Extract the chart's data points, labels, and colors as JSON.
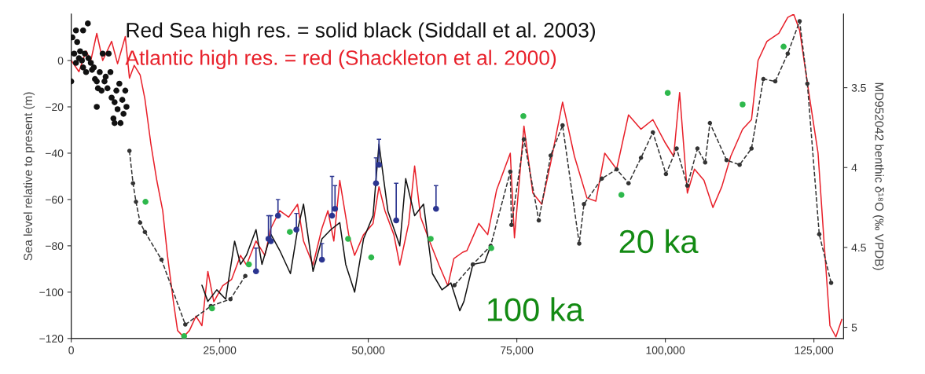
{
  "chart_data": {
    "type": "line",
    "ylabel": "Sea level relative to present (m)",
    "y2label": "MD952042 benthic δ¹⁸O (‰ VPDB)",
    "xlim": [
      0,
      130000
    ],
    "xticks": [
      0,
      {
        "value": 25000,
        "label": "25,000"
      },
      {
        "value": 50000,
        "label": "50,000"
      },
      {
        "value": 75000,
        "label": "75,000"
      },
      {
        "value": 100000,
        "label": "100,000"
      },
      {
        "value": 125000,
        "label": "125,000"
      }
    ],
    "ylim": [
      -120,
      20
    ],
    "yticks": [
      0,
      {
        "value": -20,
        "label": "−20"
      },
      {
        "value": -40,
        "label": "−40"
      },
      {
        "value": -60,
        "label": "−60"
      },
      {
        "value": -80,
        "label": "−80"
      },
      {
        "value": -100,
        "label": "−100"
      },
      {
        "value": -120,
        "label": "−120"
      }
    ],
    "y2lim": [
      5.07,
      3.04
    ],
    "y2ticks": [
      {
        "value": 3.5,
        "label": "3.5"
      },
      4,
      {
        "value": 4.5,
        "label": "4.5"
      },
      5
    ],
    "grid": false,
    "legend": false,
    "annotations": [
      "100 ka",
      "20 ka"
    ],
    "series": [
      {
        "name": "Atlantic high res. = red (Shackleton et al. 2000)",
        "axis": "y2",
        "color": "#e8202a",
        "line_style": "solid",
        "x": [
          0,
          1300,
          2500,
          3300,
          4300,
          5300,
          6800,
          7800,
          9100,
          9800,
          10600,
          11600,
          12400,
          13400,
          14400,
          15400,
          16200,
          17200,
          17900,
          18900,
          19900,
          21000,
          22000,
          23000,
          24000,
          25500,
          27000,
          28500,
          29500,
          31100,
          32600,
          33600,
          35100,
          36600,
          38100,
          39100,
          40700,
          42200,
          43200,
          44200,
          45200,
          46700,
          47700,
          49200,
          50800,
          51800,
          52800,
          54300,
          55300,
          56800,
          57800,
          58800,
          60300,
          61900,
          63400,
          64400,
          65900,
          66600,
          68600,
          70100,
          71600,
          73900,
          74600,
          76200,
          77700,
          79200,
          80700,
          82700,
          84700,
          86800,
          88300,
          89800,
          91800,
          93800,
          95900,
          97900,
          99900,
          101400,
          102400,
          103700,
          104900,
          106500,
          108000,
          109500,
          111000,
          113000,
          114500,
          115600,
          117100,
          119100,
          120600,
          121600,
          122600,
          124100,
          125700,
          126700,
          127700,
          128700,
          129700
        ],
        "values": [
          3.33,
          3.4,
          3.27,
          3.33,
          3.16,
          3.33,
          3.21,
          3.35,
          3.18,
          3.44,
          3.36,
          3.42,
          3.57,
          3.85,
          4.08,
          4.27,
          4.55,
          4.84,
          5.02,
          5.06,
          5.02,
          4.93,
          4.99,
          4.65,
          4.84,
          4.74,
          4.7,
          4.55,
          4.61,
          4.46,
          4.55,
          4.38,
          4.27,
          4.31,
          4.23,
          4.46,
          4.61,
          4.38,
          4.27,
          4.46,
          4.08,
          4.42,
          4.55,
          4.42,
          4.35,
          4.12,
          4.27,
          4.42,
          4.61,
          4.35,
          3.99,
          4.31,
          4.46,
          4.61,
          4.74,
          4.57,
          4.53,
          4.52,
          4.35,
          4.42,
          4.14,
          3.91,
          4.44,
          3.74,
          4.16,
          4.23,
          3.97,
          3.59,
          3.93,
          4.19,
          4.21,
          3.91,
          4.01,
          3.67,
          3.76,
          3.7,
          3.84,
          3.93,
          3.53,
          4.16,
          4.01,
          4.08,
          4.25,
          4.12,
          3.93,
          3.76,
          3.7,
          3.33,
          3.21,
          3.16,
          3.06,
          3.04,
          3.14,
          3.52,
          3.91,
          4.46,
          4.99,
          5.06,
          4.95
        ]
      },
      {
        "name": "Red Sea high res. = solid black (Siddall et al. 2003)",
        "color": "#111111",
        "line_style": "solid",
        "x": [
          22000,
          23000,
          24500,
          26000,
          27500,
          28500,
          29500,
          31100,
          32100,
          33600,
          35100,
          36900,
          38100,
          39100,
          40700,
          42200,
          43700,
          45200,
          46200,
          47700,
          49200,
          50800,
          51800,
          53300,
          55300,
          56300,
          57800,
          59300,
          60800,
          62400,
          63900,
          65400,
          66100,
          67600,
          69600,
          70600
        ],
        "values": [
          -97,
          -104,
          -99,
          -103,
          -78,
          -88,
          -84,
          -73,
          -88,
          -75,
          -82,
          -92,
          -73,
          -62,
          -91,
          -77,
          -73,
          -70,
          -88,
          -100,
          -77,
          -67,
          -36,
          -65,
          -80,
          -51,
          -67,
          -62,
          -92,
          -99,
          -96,
          -108,
          -104,
          -88,
          -87,
          -80
        ]
      },
      {
        "color": "#333333",
        "line_style": "dashed",
        "marker": "circle",
        "x": [
          9800,
          10400,
          10900,
          11600,
          12400,
          15200,
          19200,
          23500,
          26800,
          29300,
          47000,
          64500,
          67600,
          70600,
          73900,
          74100,
          76200,
          78700,
          80700,
          82700,
          85500,
          86300,
          89300,
          91800,
          93800,
          95900,
          97900,
          100100,
          101900,
          103700,
          105400,
          106700,
          107500,
          110300,
          112500,
          114500,
          116500,
          118500,
          120600,
          122600,
          123900,
          125900,
          127900
        ],
        "values": [
          -39,
          -53,
          -61,
          -70,
          -74,
          -86,
          -114,
          -106,
          -103,
          -93,
          null,
          -97,
          -88,
          -80,
          -48,
          -71,
          -34,
          -69,
          -41,
          -28,
          -79,
          -62,
          -51,
          -47,
          -53,
          -42,
          -31,
          -49,
          -38,
          -54,
          -38,
          -44,
          -27,
          -43,
          -45,
          -38,
          -8,
          -9,
          3,
          17,
          -10,
          -75,
          -96
        ]
      },
      {
        "type": "scatter",
        "color": "#111111",
        "marker": "circle",
        "x": [
          0,
          200,
          500,
          800,
          1000,
          1300,
          1500,
          1800,
          2000,
          2300,
          2500,
          2800,
          2900,
          3300,
          3500,
          3800,
          4000,
          4300,
          4300,
          4500,
          4800,
          5100,
          5300,
          5600,
          5800,
          6100,
          6300,
          6600,
          6800,
          7100,
          7300,
          7600,
          7800,
          8100,
          8300,
          8600,
          8800,
          9100,
          9300,
          800,
          2000,
          7300
        ],
        "values": [
          -9,
          10,
          3,
          -1,
          8,
          1,
          4,
          0,
          -3,
          3,
          -5,
          16,
          1,
          -1,
          -4,
          -3,
          -8,
          -20,
          -9,
          -12,
          -5,
          -13,
          3,
          -9,
          -7,
          -12,
          3,
          -5,
          -16,
          -25,
          -18,
          -13,
          -21,
          -10,
          -27,
          -17,
          -23,
          -13,
          -20,
          13,
          13,
          -27
        ]
      },
      {
        "type": "scatter",
        "color": "#2b3590",
        "marker": "circle",
        "x": [
          31100,
          33200,
          33600,
          34800,
          37900,
          42200,
          43900,
          44400,
          51300,
          51800,
          54700,
          61400
        ],
        "values": [
          -91,
          -77,
          -78,
          -67,
          -73,
          -86,
          -67,
          -64,
          -53,
          -45,
          -69,
          -64
        ],
        "errors": [
          [
            -91,
            -81
          ],
          [
            -77,
            -67
          ],
          [
            -78,
            -67
          ],
          [
            -67,
            -60
          ],
          [
            -73,
            -66
          ],
          [
            -86,
            -79
          ],
          [
            -67,
            -50
          ],
          [
            -64,
            -54
          ],
          [
            -53,
            -42
          ],
          [
            -45,
            -34
          ],
          [
            -69,
            -53
          ],
          [
            -64,
            -54
          ]
        ]
      },
      {
        "type": "scatter",
        "color": "#2eb84c",
        "marker": "circle",
        "x": [
          12500,
          19000,
          23700,
          29900,
          36800,
          46600,
          50500,
          60500,
          70700,
          76100,
          92600,
          100400,
          113000,
          119900
        ],
        "values": [
          -61,
          -119,
          -107,
          -88,
          -74,
          -77,
          -85,
          -77,
          -81,
          -24,
          -58,
          -14,
          -19,
          6
        ]
      }
    ]
  }
}
